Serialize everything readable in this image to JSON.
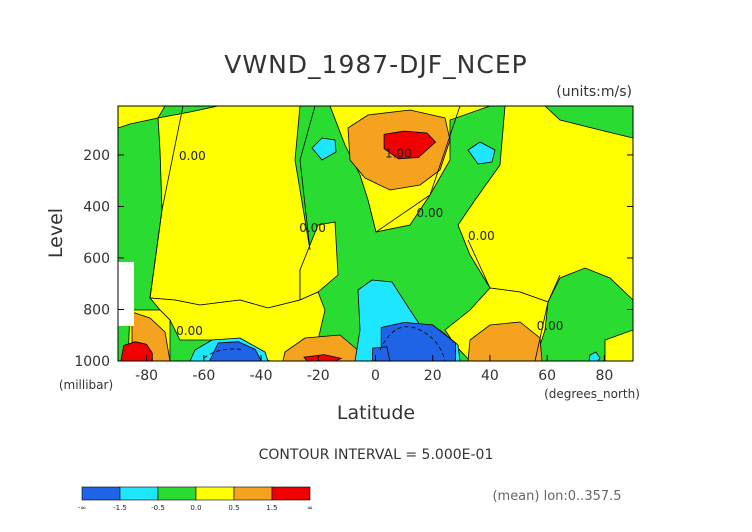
{
  "chart_data": {
    "type": "heatmap",
    "title": "VWND_1987-DJF_NCEP",
    "units": "(units:m/s)",
    "xlabel": "Latitude",
    "xunits": "(degrees_north)",
    "ylabel": "Level",
    "yunits": "(millibar)",
    "xlim": [
      -90,
      90
    ],
    "ylim": [
      1000,
      10
    ],
    "x_ticks": [
      -80,
      -60,
      -40,
      -20,
      0,
      20,
      40,
      60,
      80
    ],
    "y_ticks": [
      200,
      400,
      600,
      800,
      1000
    ],
    "contour_interval_text": "CONTOUR INTERVAL = 5.000E-01",
    "contour_labels": [
      {
        "text": "0.00",
        "x": -64,
        "y": 220
      },
      {
        "text": "1.00",
        "x": 8,
        "y": 210
      },
      {
        "text": "0.00",
        "x": 19,
        "y": 440
      },
      {
        "text": "0.00",
        "x": -22,
        "y": 500
      },
      {
        "text": "0.00",
        "x": 37,
        "y": 530
      },
      {
        "text": "0.00",
        "x": -65,
        "y": 900
      },
      {
        "text": "0.00",
        "x": 61,
        "y": 880
      }
    ],
    "colorbar": {
      "bins": [
        {
          "min": "-∞",
          "max": -1.5,
          "color": "#1f63e6"
        },
        {
          "min": -1.5,
          "max": -0.5,
          "color": "#1fe6ff"
        },
        {
          "min": -0.5,
          "max": 0.0,
          "color": "#2adc32"
        },
        {
          "min": 0.0,
          "max": 0.5,
          "color": "#ffff00"
        },
        {
          "min": 0.5,
          "max": 1.5,
          "color": "#f5a21e"
        },
        {
          "min": 1.5,
          "max": "∞",
          "color": "#f00000"
        }
      ],
      "labels": [
        "-∞",
        "-1.5",
        "-0.5",
        "0.0",
        "0.5",
        "1.5",
        "∞"
      ]
    },
    "footer_note": "(mean) lon:0..357.5",
    "regions": [
      {
        "level": "blue",
        "points": [
          [
            -55,
            930
          ],
          [
            -48,
            925
          ],
          [
            -42,
            955
          ],
          [
            -40,
            1000
          ],
          [
            -58,
            1000
          ]
        ]
      },
      {
        "level": "blue",
        "points": [
          [
            2,
            870
          ],
          [
            10,
            850
          ],
          [
            20,
            860
          ],
          [
            28,
            930
          ],
          [
            28,
            1000
          ],
          [
            5,
            1000
          ],
          [
            2,
            960
          ]
        ]
      },
      {
        "level": "blue",
        "points": [
          [
            -1,
            950
          ],
          [
            4,
            945
          ],
          [
            5,
            1000
          ],
          [
            -1,
            1000
          ]
        ]
      },
      {
        "level": "red",
        "points": [
          [
            -88,
            940
          ],
          [
            -84,
            925
          ],
          [
            -80,
            935
          ],
          [
            -78,
            970
          ],
          [
            -78,
            1000
          ],
          [
            -89,
            1000
          ]
        ]
      },
      {
        "level": "red",
        "points": [
          [
            -25,
            985
          ],
          [
            -18,
            975
          ],
          [
            -12,
            990
          ],
          [
            -14,
            1000
          ],
          [
            -24,
            1000
          ]
        ]
      },
      {
        "level": "red",
        "points": [
          [
            3,
            120
          ],
          [
            10,
            108
          ],
          [
            18,
            115
          ],
          [
            21,
            150
          ],
          [
            15,
            210
          ],
          [
            8,
            215
          ],
          [
            3,
            175
          ]
        ]
      }
    ]
  }
}
